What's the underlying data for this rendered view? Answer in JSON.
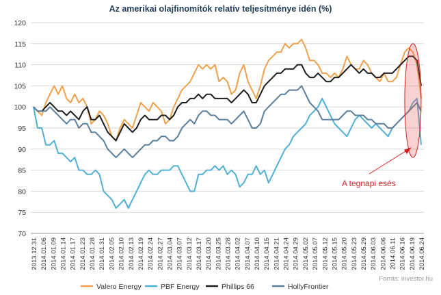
{
  "chart_data": {
    "type": "line",
    "title": "Az amerikai olajfinomítók relatív teljesítménye idén (%)",
    "ylim": [
      70,
      120
    ],
    "yticks": [
      70,
      75,
      80,
      85,
      90,
      95,
      100,
      105,
      110,
      115,
      120
    ],
    "grid": true,
    "legend_position": "bottom",
    "x_tick_labels": [
      "2013.12.31",
      "2014.01.06",
      "2014.01.09",
      "2014.01.14",
      "2014.01.17",
      "2014.01.23",
      "2014.01.28",
      "2014.01.31",
      "2014.02.05",
      "2014.02.10",
      "2014.02.13",
      "2014.02.19",
      "2014.02.24",
      "2014.02.27",
      "2014.03.04",
      "2014.03.07",
      "2014.03.12",
      "2014.03.17",
      "2014.03.20",
      "2014.03.25",
      "2014.03.28",
      "2014.04.02",
      "2014.04.07",
      "2014.04.10",
      "2014.04.15",
      "2014.04.21",
      "2014.04.24",
      "2014.04.29",
      "2014.05.02",
      "2014.05.07",
      "2014.05.12",
      "2014.05.15",
      "2014.05.20",
      "2014.05.23",
      "2014.05.29",
      "2014.06.03",
      "2014.06.06",
      "2014.06.11",
      "2014.06.16",
      "2014.06.19",
      "2014.06.24"
    ],
    "series": [
      {
        "name": "Valero Energy",
        "color": "#f0a04b",
        "values": [
          100,
          99,
          98,
          101,
          103,
          105,
          103,
          105,
          102,
          101,
          103,
          101,
          102,
          100,
          96,
          97,
          99,
          98,
          96,
          93,
          92,
          95,
          97,
          96,
          95,
          98,
          101,
          100,
          99,
          101,
          100,
          99,
          96,
          97,
          100,
          102,
          104,
          105,
          106,
          108,
          110,
          109,
          110,
          109,
          110,
          106,
          107,
          106,
          103,
          104,
          108,
          110,
          106,
          104,
          102,
          105,
          109,
          111,
          112,
          113,
          113,
          115,
          114,
          115,
          115,
          116,
          114,
          111,
          111,
          110,
          108,
          108,
          107,
          108,
          107,
          109,
          112,
          110,
          109,
          109,
          111,
          110,
          108,
          107,
          106,
          108,
          106,
          106,
          107,
          110,
          113,
          114,
          113,
          110,
          102
        ]
      },
      {
        "name": "PBF Energy",
        "color": "#4fb0d6",
        "values": [
          100,
          95,
          95,
          91,
          91,
          92,
          89,
          89,
          88,
          87,
          88,
          85,
          85,
          84,
          84,
          85,
          84,
          80,
          79,
          78,
          76,
          77,
          78,
          76,
          78,
          80,
          82,
          84,
          85,
          84,
          84,
          85,
          85,
          85,
          86,
          86,
          84,
          82,
          80,
          80,
          84,
          84,
          85,
          85,
          86,
          85,
          86,
          84,
          85,
          84,
          81,
          82,
          84,
          84,
          86,
          84,
          85,
          82,
          84,
          86,
          88,
          90,
          91,
          93,
          94,
          95,
          96,
          98,
          99,
          100,
          102,
          100,
          98,
          96,
          95,
          94,
          93,
          95,
          97,
          98,
          97,
          96,
          95,
          96,
          95,
          94,
          93,
          95,
          96,
          97,
          98,
          99,
          101,
          102,
          91
        ]
      },
      {
        "name": "Phillips 66",
        "color": "#1c1c1c",
        "values": [
          100,
          99,
          99,
          100,
          101,
          100,
          99,
          99,
          98,
          99,
          98,
          97,
          99,
          100,
          97,
          97,
          98,
          96,
          94,
          93,
          92,
          94,
          96,
          95,
          94,
          95,
          97,
          98,
          97,
          97,
          97,
          98,
          98,
          97,
          98,
          100,
          101,
          101,
          102,
          102,
          103,
          102,
          103,
          103,
          102,
          102,
          102,
          102,
          101,
          102,
          103,
          104,
          103,
          101,
          101,
          103,
          105,
          106,
          107,
          108,
          108,
          109,
          109,
          109,
          110,
          110,
          108,
          107,
          107,
          108,
          107,
          106,
          106,
          107,
          107,
          108,
          109,
          110,
          109,
          108,
          109,
          108,
          108,
          107,
          107,
          108,
          108,
          108,
          109,
          110,
          111,
          112,
          112,
          111,
          105
        ]
      },
      {
        "name": "HollyFrontier",
        "color": "#5a7f9e",
        "values": [
          100,
          99,
          99,
          99,
          100,
          99,
          98,
          97,
          96,
          97,
          97,
          95,
          96,
          96,
          94,
          94,
          93,
          92,
          90,
          89,
          88,
          89,
          90,
          89,
          88,
          89,
          90,
          91,
          91,
          92,
          92,
          93,
          93,
          92,
          92,
          93,
          95,
          96,
          97,
          96,
          98,
          99,
          99,
          98,
          98,
          97,
          97,
          97,
          96,
          97,
          98,
          99,
          97,
          95,
          95,
          96,
          99,
          100,
          101,
          102,
          103,
          103,
          104,
          104,
          104,
          105,
          103,
          101,
          100,
          99,
          97,
          97,
          97,
          97,
          97,
          98,
          99,
          99,
          98,
          98,
          98,
          97,
          97,
          96,
          96,
          96,
          95,
          95,
          96,
          97,
          98,
          99,
          100,
          101,
          99
        ]
      }
    ],
    "annotation": "A tegnapi esés",
    "source": "Forrás: investor.hu"
  }
}
